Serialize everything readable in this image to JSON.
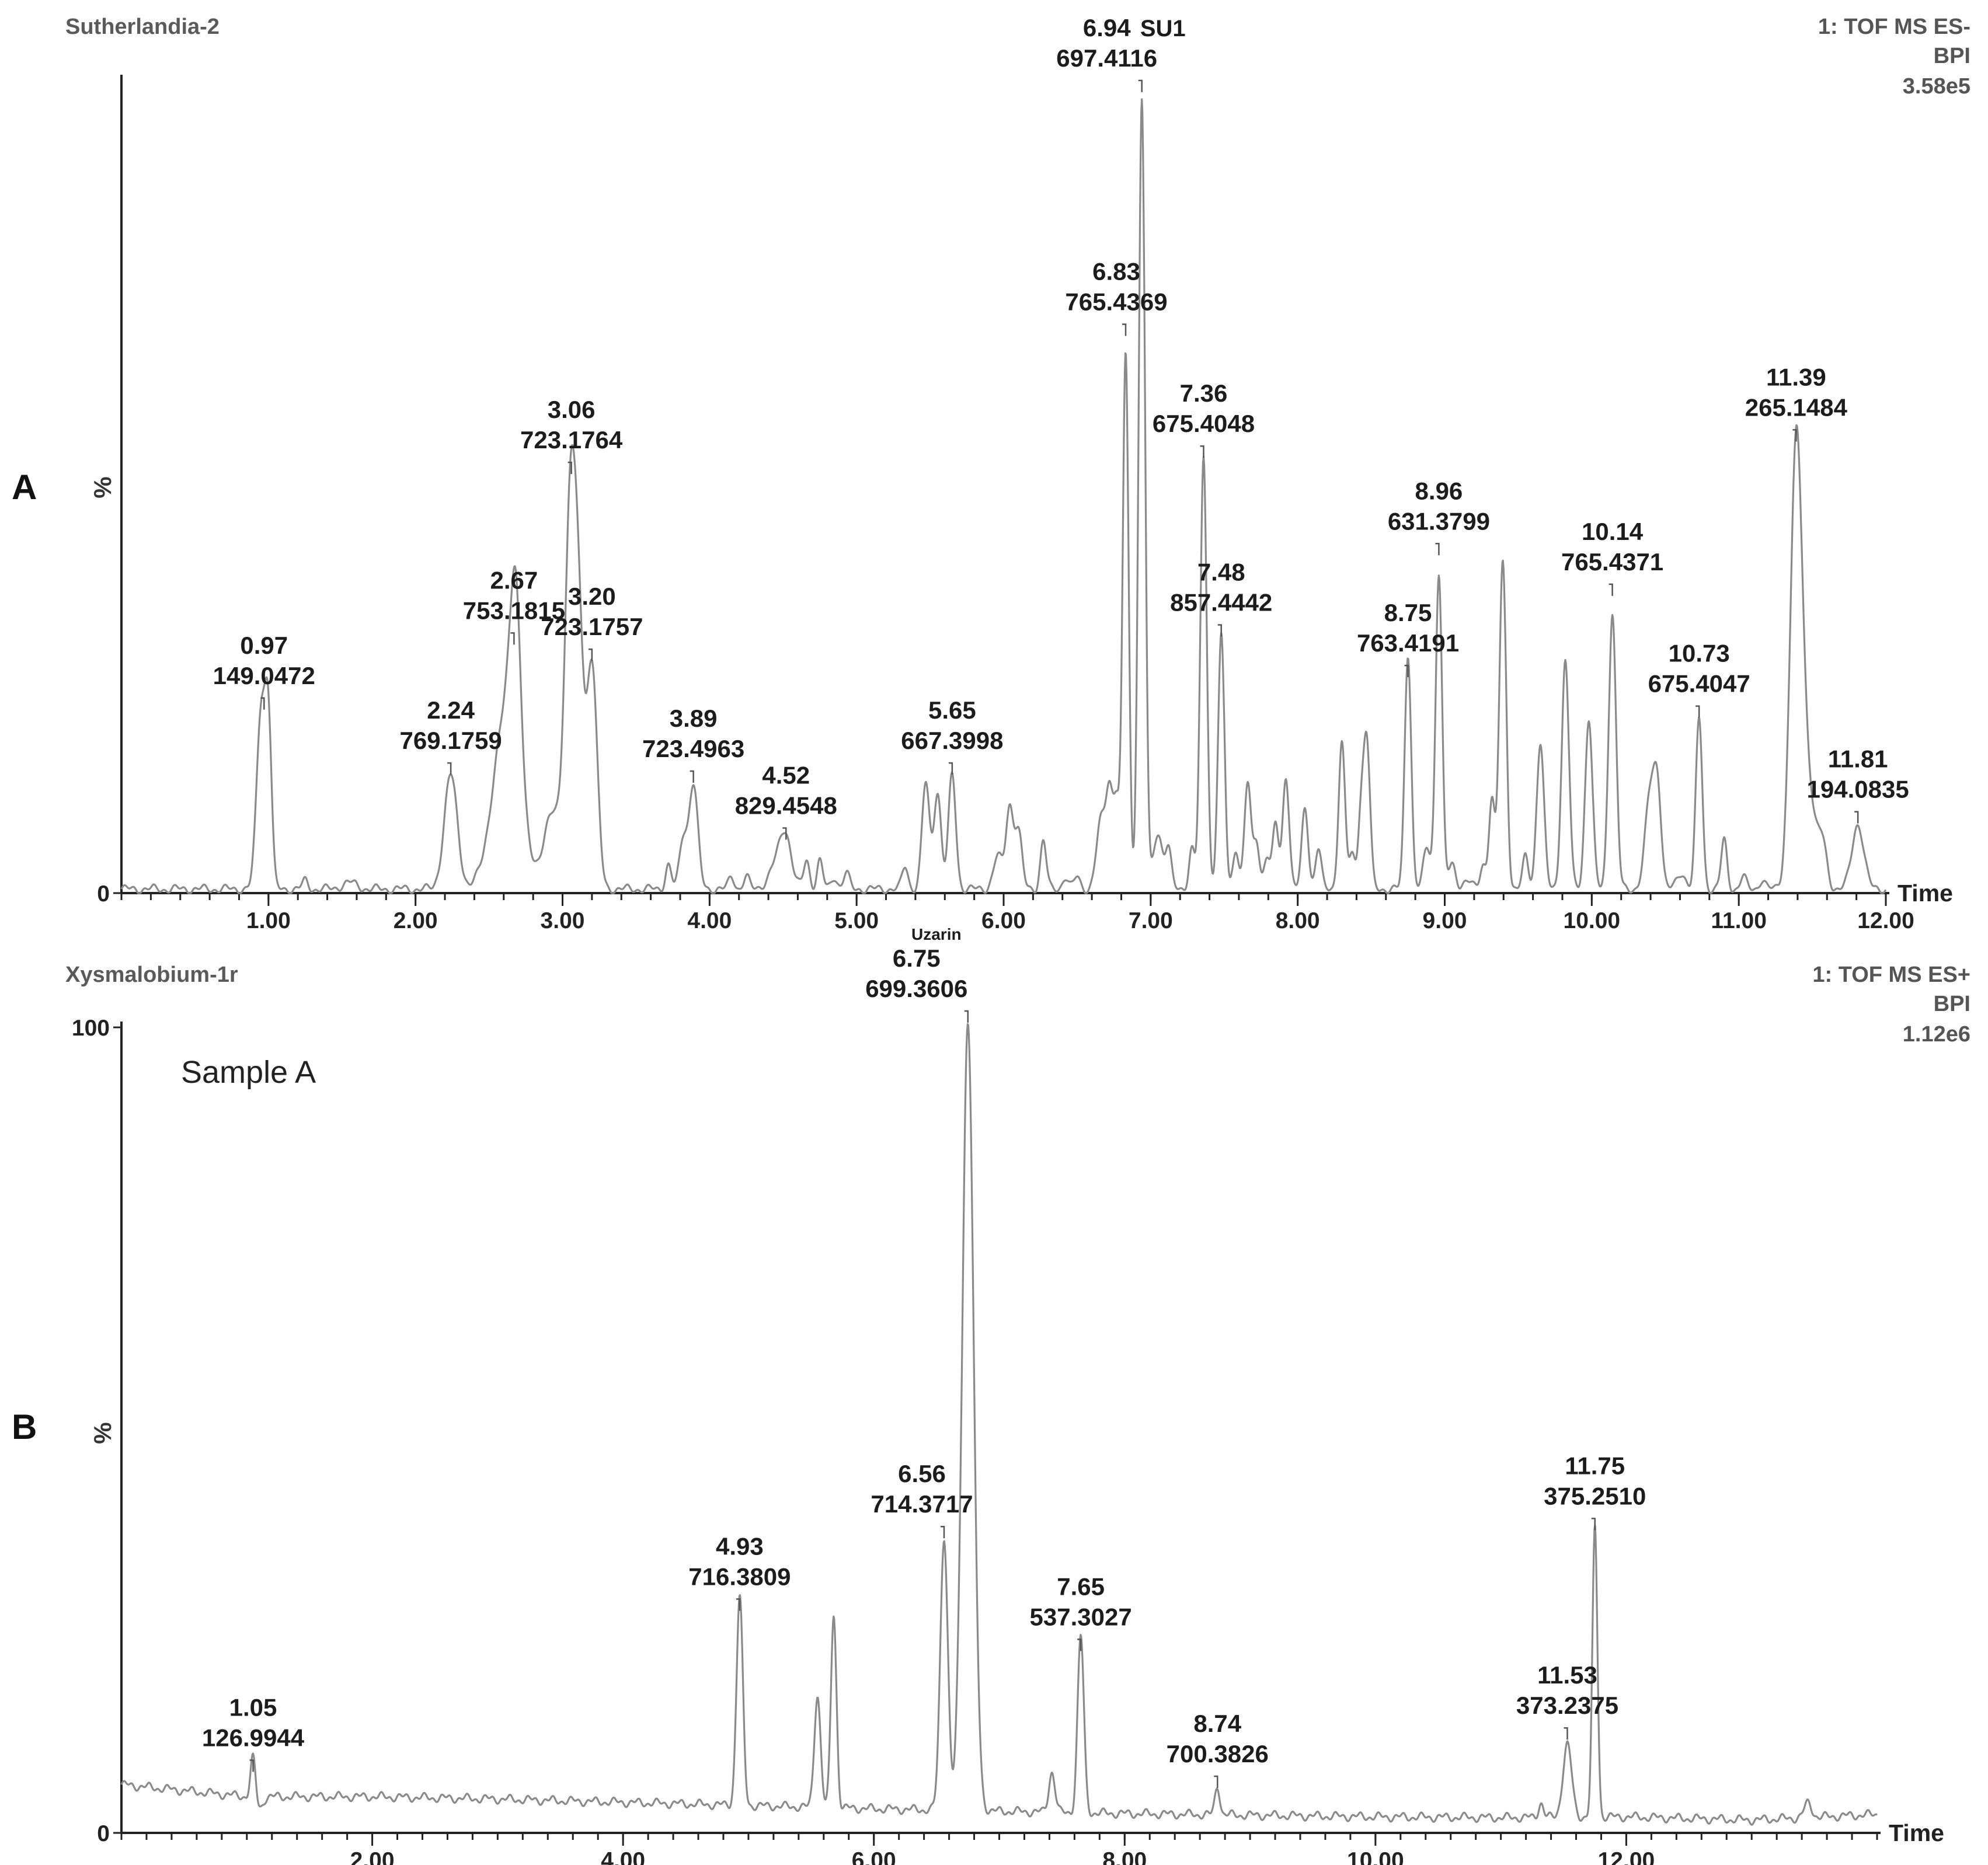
{
  "chart_data": [
    {
      "type": "line",
      "panel": "A",
      "title": "Sutherlandia-2",
      "header_right": [
        "1: TOF MS ES-",
        "BPI",
        "3.58e5"
      ],
      "xlabel": "Time",
      "ylabel": "%",
      "xlim": [
        0,
        12.0
      ],
      "ylim": [
        0,
        100
      ],
      "x_ticks": [
        "1.00",
        "2.00",
        "3.00",
        "4.00",
        "5.00",
        "6.00",
        "7.00",
        "8.00",
        "9.00",
        "10.00",
        "11.00",
        "12.00"
      ],
      "y_ticks": [
        "0"
      ],
      "baseline": 0.5,
      "series": [
        {
          "name": "BPI",
          "peaks": [
            [
              0.95,
              22,
              0.03
            ],
            [
              1.0,
              19,
              0.022
            ],
            [
              1.25,
              1,
              0.02
            ],
            [
              1.55,
              0.8,
              0.05
            ],
            [
              2.24,
              14,
              0.045
            ],
            [
              2.62,
              22,
              0.09
            ],
            [
              2.68,
              22,
              0.035
            ],
            [
              2.93,
              9,
              0.06
            ],
            [
              3.06,
              51,
              0.04
            ],
            [
              3.12,
              18,
              0.03
            ],
            [
              3.2,
              28,
              0.035
            ],
            [
              3.72,
              3,
              0.02
            ],
            [
              3.82,
              6,
              0.025
            ],
            [
              3.89,
              13,
              0.03
            ],
            [
              4.15,
              1.5,
              0.02
            ],
            [
              4.25,
              1.5,
              0.02
            ],
            [
              4.48,
              4,
              0.06
            ],
            [
              4.52,
              4,
              0.035
            ],
            [
              4.66,
              3.5,
              0.02
            ],
            [
              4.75,
              3.5,
              0.02
            ],
            [
              4.85,
              1.5,
              0.02
            ],
            [
              4.93,
              2,
              0.02
            ],
            [
              5.33,
              2.8,
              0.02
            ],
            [
              5.47,
              13,
              0.025
            ],
            [
              5.55,
              12,
              0.025
            ],
            [
              5.65,
              14,
              0.025
            ],
            [
              5.96,
              4,
              0.03
            ],
            [
              6.04,
              10,
              0.025
            ],
            [
              6.1,
              7,
              0.025
            ],
            [
              6.27,
              6,
              0.02
            ],
            [
              6.42,
              1.5,
              0.02
            ],
            [
              6.5,
              1.5,
              0.02
            ],
            [
              6.66,
              8,
              0.03
            ],
            [
              6.72,
              12,
              0.025
            ],
            [
              6.77,
              10,
              0.02
            ],
            [
              6.83,
              66,
              0.02
            ],
            [
              6.94,
              97,
              0.022
            ],
            [
              7.05,
              7,
              0.03
            ],
            [
              7.12,
              5,
              0.02
            ],
            [
              7.28,
              5,
              0.02
            ],
            [
              7.36,
              53,
              0.022
            ],
            [
              7.48,
              31,
              0.022
            ],
            [
              7.58,
              5,
              0.02
            ],
            [
              7.66,
              13,
              0.022
            ],
            [
              7.72,
              6,
              0.02
            ],
            [
              7.79,
              4,
              0.02
            ],
            [
              7.85,
              8,
              0.02
            ],
            [
              7.92,
              14,
              0.022
            ],
            [
              8.05,
              10,
              0.022
            ],
            [
              8.14,
              5,
              0.02
            ],
            [
              8.3,
              18,
              0.022
            ],
            [
              8.37,
              4,
              0.02
            ],
            [
              8.43,
              9,
              0.02
            ],
            [
              8.47,
              18,
              0.022
            ],
            [
              8.75,
              29,
              0.022
            ],
            [
              8.88,
              5,
              0.025
            ],
            [
              8.96,
              39,
              0.022
            ],
            [
              9.05,
              3,
              0.025
            ],
            [
              9.15,
              1,
              0.03
            ],
            [
              9.26,
              3,
              0.02
            ],
            [
              9.32,
              11,
              0.02
            ],
            [
              9.38,
              12,
              0.02
            ],
            [
              9.4,
              32,
              0.022
            ],
            [
              9.55,
              4,
              0.02
            ],
            [
              9.65,
              18,
              0.025
            ],
            [
              9.82,
              28,
              0.025
            ],
            [
              9.98,
              21,
              0.025
            ],
            [
              10.14,
              34,
              0.025
            ],
            [
              10.4,
              12,
              0.035
            ],
            [
              10.45,
              10,
              0.025
            ],
            [
              10.61,
              2,
              0.03
            ],
            [
              10.73,
              21,
              0.022
            ],
            [
              10.9,
              6,
              0.02
            ],
            [
              11.03,
              1.5,
              0.02
            ],
            [
              11.16,
              1.2,
              0.02
            ],
            [
              11.39,
              53,
              0.04
            ],
            [
              11.47,
              12,
              0.05
            ],
            [
              11.57,
              5,
              0.03
            ],
            [
              11.81,
              8,
              0.04
            ]
          ]
        }
      ],
      "annotations": [
        {
          "rt": "0.97",
          "mz": "149.0472",
          "x": 0.97,
          "y": 22
        },
        {
          "rt": "2.24",
          "mz": "769.1759",
          "x": 2.24,
          "y": 14
        },
        {
          "rt": "2.67",
          "mz": "753.1815",
          "x": 2.67,
          "y": 30
        },
        {
          "rt": "3.06",
          "mz": "723.1764",
          "x": 3.06,
          "y": 51
        },
        {
          "rt": "3.20",
          "mz": "723.1757",
          "x": 3.2,
          "y": 28
        },
        {
          "rt": "3.89",
          "mz": "723.4963",
          "x": 3.89,
          "y": 13
        },
        {
          "rt": "4.52",
          "mz": "829.4548",
          "x": 4.52,
          "y": 6
        },
        {
          "rt": "5.65",
          "mz": "667.3998",
          "x": 5.65,
          "y": 14
        },
        {
          "rt": "6.83",
          "mz": "765.4369",
          "x": 6.83,
          "y": 68
        },
        {
          "rt": "6.94",
          "mz": "697.4116",
          "x": 6.94,
          "y": 98,
          "name": "SU1"
        },
        {
          "rt": "7.36",
          "mz": "675.4048",
          "x": 7.36,
          "y": 53
        },
        {
          "rt": "7.48",
          "mz": "857.4442",
          "x": 7.48,
          "y": 31
        },
        {
          "rt": "8.75",
          "mz": "763.4191",
          "x": 8.75,
          "y": 26
        },
        {
          "rt": "8.96",
          "mz": "631.3799",
          "x": 8.96,
          "y": 41
        },
        {
          "rt": "10.14",
          "mz": "765.4371",
          "x": 10.14,
          "y": 36
        },
        {
          "rt": "10.73",
          "mz": "675.4047",
          "x": 10.73,
          "y": 21
        },
        {
          "rt": "11.39",
          "mz": "265.1484",
          "x": 11.39,
          "y": 55
        },
        {
          "rt": "11.81",
          "mz": "194.0835",
          "x": 11.81,
          "y": 8
        }
      ]
    },
    {
      "type": "line",
      "panel": "B",
      "title": "Xysmalobium-1r",
      "header_right": [
        "1: TOF MS ES+",
        "BPI",
        "1.12e6"
      ],
      "annotation_text": "Sample A",
      "xlabel": "Time",
      "ylabel": "%",
      "xlim": [
        0,
        14.0
      ],
      "ylim": [
        0,
        100
      ],
      "x_ticks": [
        "2.00",
        "4.00",
        "6.00",
        "8.00",
        "10.00",
        "12.00"
      ],
      "y_ticks": [
        "0",
        "100"
      ],
      "baseline": [
        [
          0,
          6
        ],
        [
          1.0,
          4.5
        ],
        [
          2.0,
          4.5
        ],
        [
          3.0,
          4.2
        ],
        [
          4.0,
          3.8
        ],
        [
          5.0,
          3.4
        ],
        [
          6.0,
          3.0
        ],
        [
          8.0,
          2.4
        ],
        [
          10.0,
          2.0
        ],
        [
          11.0,
          1.9
        ],
        [
          12.0,
          2.0
        ],
        [
          13.0,
          1.6
        ],
        [
          14.0,
          2.3
        ]
      ],
      "series": [
        {
          "name": "BPI",
          "peaks": [
            [
              1.05,
              5,
              0.02
            ],
            [
              1.1,
              -1.5,
              0.025
            ],
            [
              4.93,
              26,
              0.025
            ],
            [
              5.55,
              14,
              0.025
            ],
            [
              5.68,
              24,
              0.022
            ],
            [
              6.56,
              34,
              0.03
            ],
            [
              6.75,
              98,
              0.045
            ],
            [
              7.42,
              5,
              0.025
            ],
            [
              7.65,
              22,
              0.025
            ],
            [
              8.74,
              3.5,
              0.02
            ],
            [
              11.32,
              1.8,
              0.02
            ],
            [
              11.53,
              9,
              0.035
            ],
            [
              11.75,
              36,
              0.02
            ],
            [
              13.45,
              1.8,
              0.03
            ]
          ]
        }
      ],
      "annotations": [
        {
          "rt": "1.05",
          "mz": "126.9944",
          "x": 1.05,
          "y": 7
        },
        {
          "rt": "4.93",
          "mz": "716.3809",
          "x": 4.93,
          "y": 27
        },
        {
          "rt": "6.56",
          "mz": "714.3717",
          "x": 6.56,
          "y": 36
        },
        {
          "rt": "6.75",
          "mz": "699.3606",
          "x": 6.75,
          "y": 100,
          "name": "Uzarin"
        },
        {
          "rt": "7.65",
          "mz": "537.3027",
          "x": 7.65,
          "y": 22
        },
        {
          "rt": "8.74",
          "mz": "700.3826",
          "x": 8.74,
          "y": 5
        },
        {
          "rt": "11.53",
          "mz": "373.2375",
          "x": 11.53,
          "y": 11
        },
        {
          "rt": "11.75",
          "mz": "375.2510",
          "x": 11.75,
          "y": 37
        }
      ]
    }
  ]
}
